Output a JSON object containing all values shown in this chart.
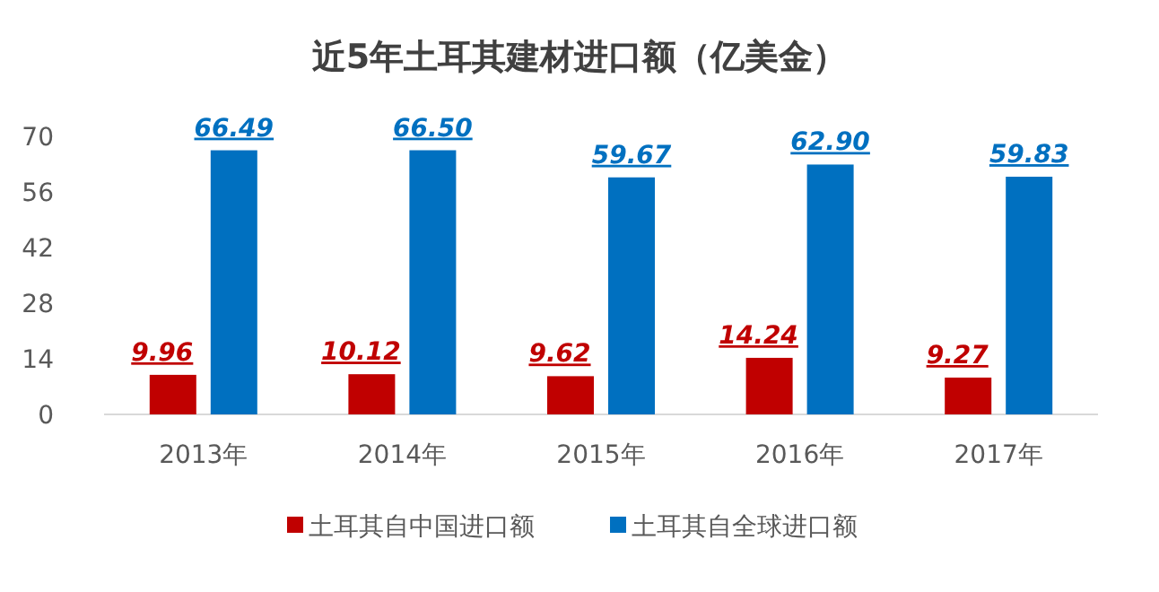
{
  "chart_data": {
    "type": "bar",
    "title": "近5年土耳其建材进口额（亿美金）",
    "categories": [
      "2013年",
      "2014年",
      "2015年",
      "2016年",
      "2017年"
    ],
    "series": [
      {
        "name": "土耳其自中国进口额",
        "color": "#c00000",
        "values": [
          9.96,
          10.12,
          9.62,
          14.24,
          9.27
        ],
        "value_labels": [
          "9.96",
          "10.12",
          "9.62",
          "14.24",
          "9.27"
        ]
      },
      {
        "name": "土耳其自全球进口额",
        "color": "#0070c0",
        "values": [
          66.49,
          66.5,
          59.67,
          62.9,
          59.83
        ],
        "value_labels": [
          "66.49",
          "66.50",
          "59.67",
          "62.90",
          "59.83"
        ]
      }
    ],
    "ylim": [
      0,
      70
    ],
    "yticks": [
      0,
      14,
      28,
      42,
      56,
      70
    ],
    "legend": "bottom"
  }
}
